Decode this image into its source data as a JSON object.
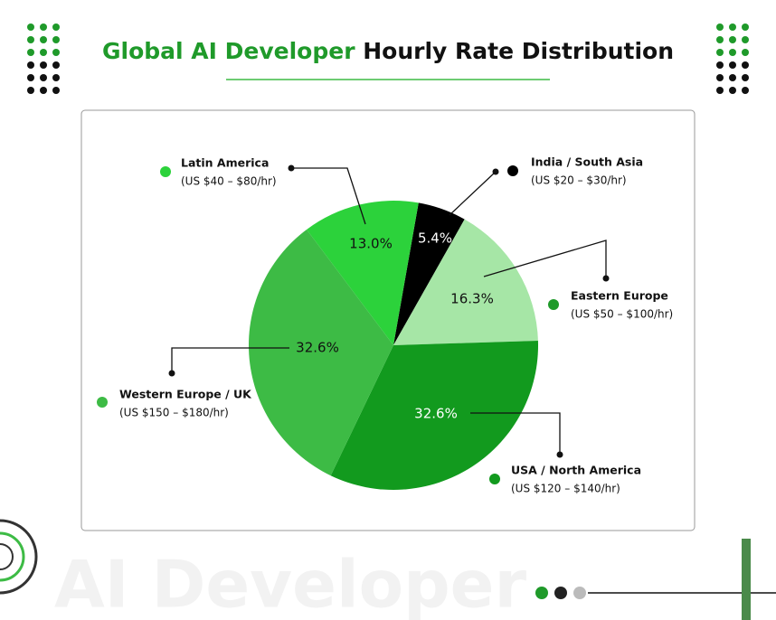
{
  "chart_data": {
    "type": "pie",
    "title_highlight": "Global AI Developer",
    "title_rest": "Hourly Rate Distribution",
    "watermark": "AI Developer",
    "categories": [
      "India / South Asia",
      "Eastern Europe",
      "USA / North America",
      "Western Europe / UK",
      "Latin America"
    ],
    "category_ranges": [
      "(US $20 – $30/hr)",
      "(US $50 – $100/hr)",
      "(US $120 – $140/hr)",
      "(US $150 – $180/hr)",
      "(US $40 – $80/hr)"
    ],
    "values": [
      5.4,
      16.3,
      32.6,
      32.6,
      13.0
    ],
    "value_labels": [
      "5.4%",
      "16.3%",
      "32.6%",
      "32.6%",
      "13.0%"
    ],
    "colors": [
      "#000000",
      "#a6e6a6",
      "#129a1e",
      "#3dbb45",
      "#2cd23b"
    ]
  }
}
